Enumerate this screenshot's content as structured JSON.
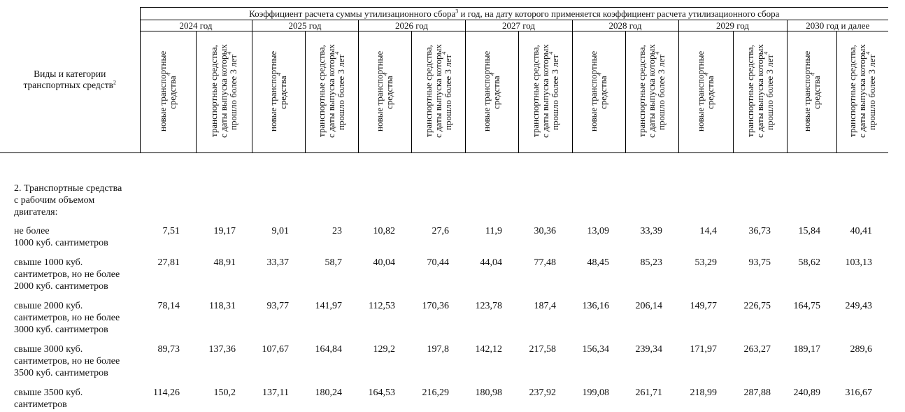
{
  "header": {
    "left": {
      "text": "Виды и категории\nтранспортных средств",
      "sup": "2"
    },
    "top": {
      "before": "Коэффициент расчета суммы утилизационного сбора",
      "sup": "3",
      "after": " и год, на дату которого применяется коэффициент расчета утилизационного сбора"
    },
    "years": [
      "2024 год",
      "2025 год",
      "2026 год",
      "2027 год",
      "2028 год",
      "2029 год",
      "2030  год и далее"
    ],
    "subheaders": [
      {
        "text": "новые транспортные\nсредства",
        "sup": "4"
      },
      {
        "text": "транспортные средства,\nс даты выпуска которых\nпрошло более 3 лет",
        "sup": "4"
      }
    ]
  },
  "section": "2. Транспортные средства\nс рабочим объемом\nдвигателя:",
  "rows": [
    {
      "label": "не более\n1000 куб. сантиметров",
      "values": [
        "7,51",
        "19,17",
        "9,01",
        "23",
        "10,82",
        "27,6",
        "11,9",
        "30,36",
        "13,09",
        "33,39",
        "14,4",
        "36,73",
        "15,84",
        "40,41"
      ]
    },
    {
      "label": "свыше 1000 куб.\nсантиметров, но не более\n2000 куб. сантиметров",
      "values": [
        "27,81",
        "48,91",
        "33,37",
        "58,7",
        "40,04",
        "70,44",
        "44,04",
        "77,48",
        "48,45",
        "85,23",
        "53,29",
        "93,75",
        "58,62",
        "103,13"
      ]
    },
    {
      "label": "свыше 2000 куб.\nсантиметров, но не более\n3000 куб. сантиметров",
      "values": [
        "78,14",
        "118,31",
        "93,77",
        "141,97",
        "112,53",
        "170,36",
        "123,78",
        "187,4",
        "136,16",
        "206,14",
        "149,77",
        "226,75",
        "164,75",
        "249,43"
      ]
    },
    {
      "label": "свыше 3000 куб.\nсантиметров, но не более\n3500 куб. сантиметров",
      "values": [
        "89,73",
        "137,36",
        "107,67",
        "164,84",
        "129,2",
        "197,8",
        "142,12",
        "217,58",
        "156,34",
        "239,34",
        "171,97",
        "263,27",
        "189,17",
        "289,6"
      ]
    },
    {
      "label": "свыше 3500 куб.\nсантиметров",
      "values": [
        "114,26",
        "150,2",
        "137,11",
        "180,24",
        "164,53",
        "216,29",
        "180,98",
        "237,92",
        "199,08",
        "261,71",
        "218,99",
        "287,88",
        "240,89",
        "316,67"
      ]
    }
  ]
}
